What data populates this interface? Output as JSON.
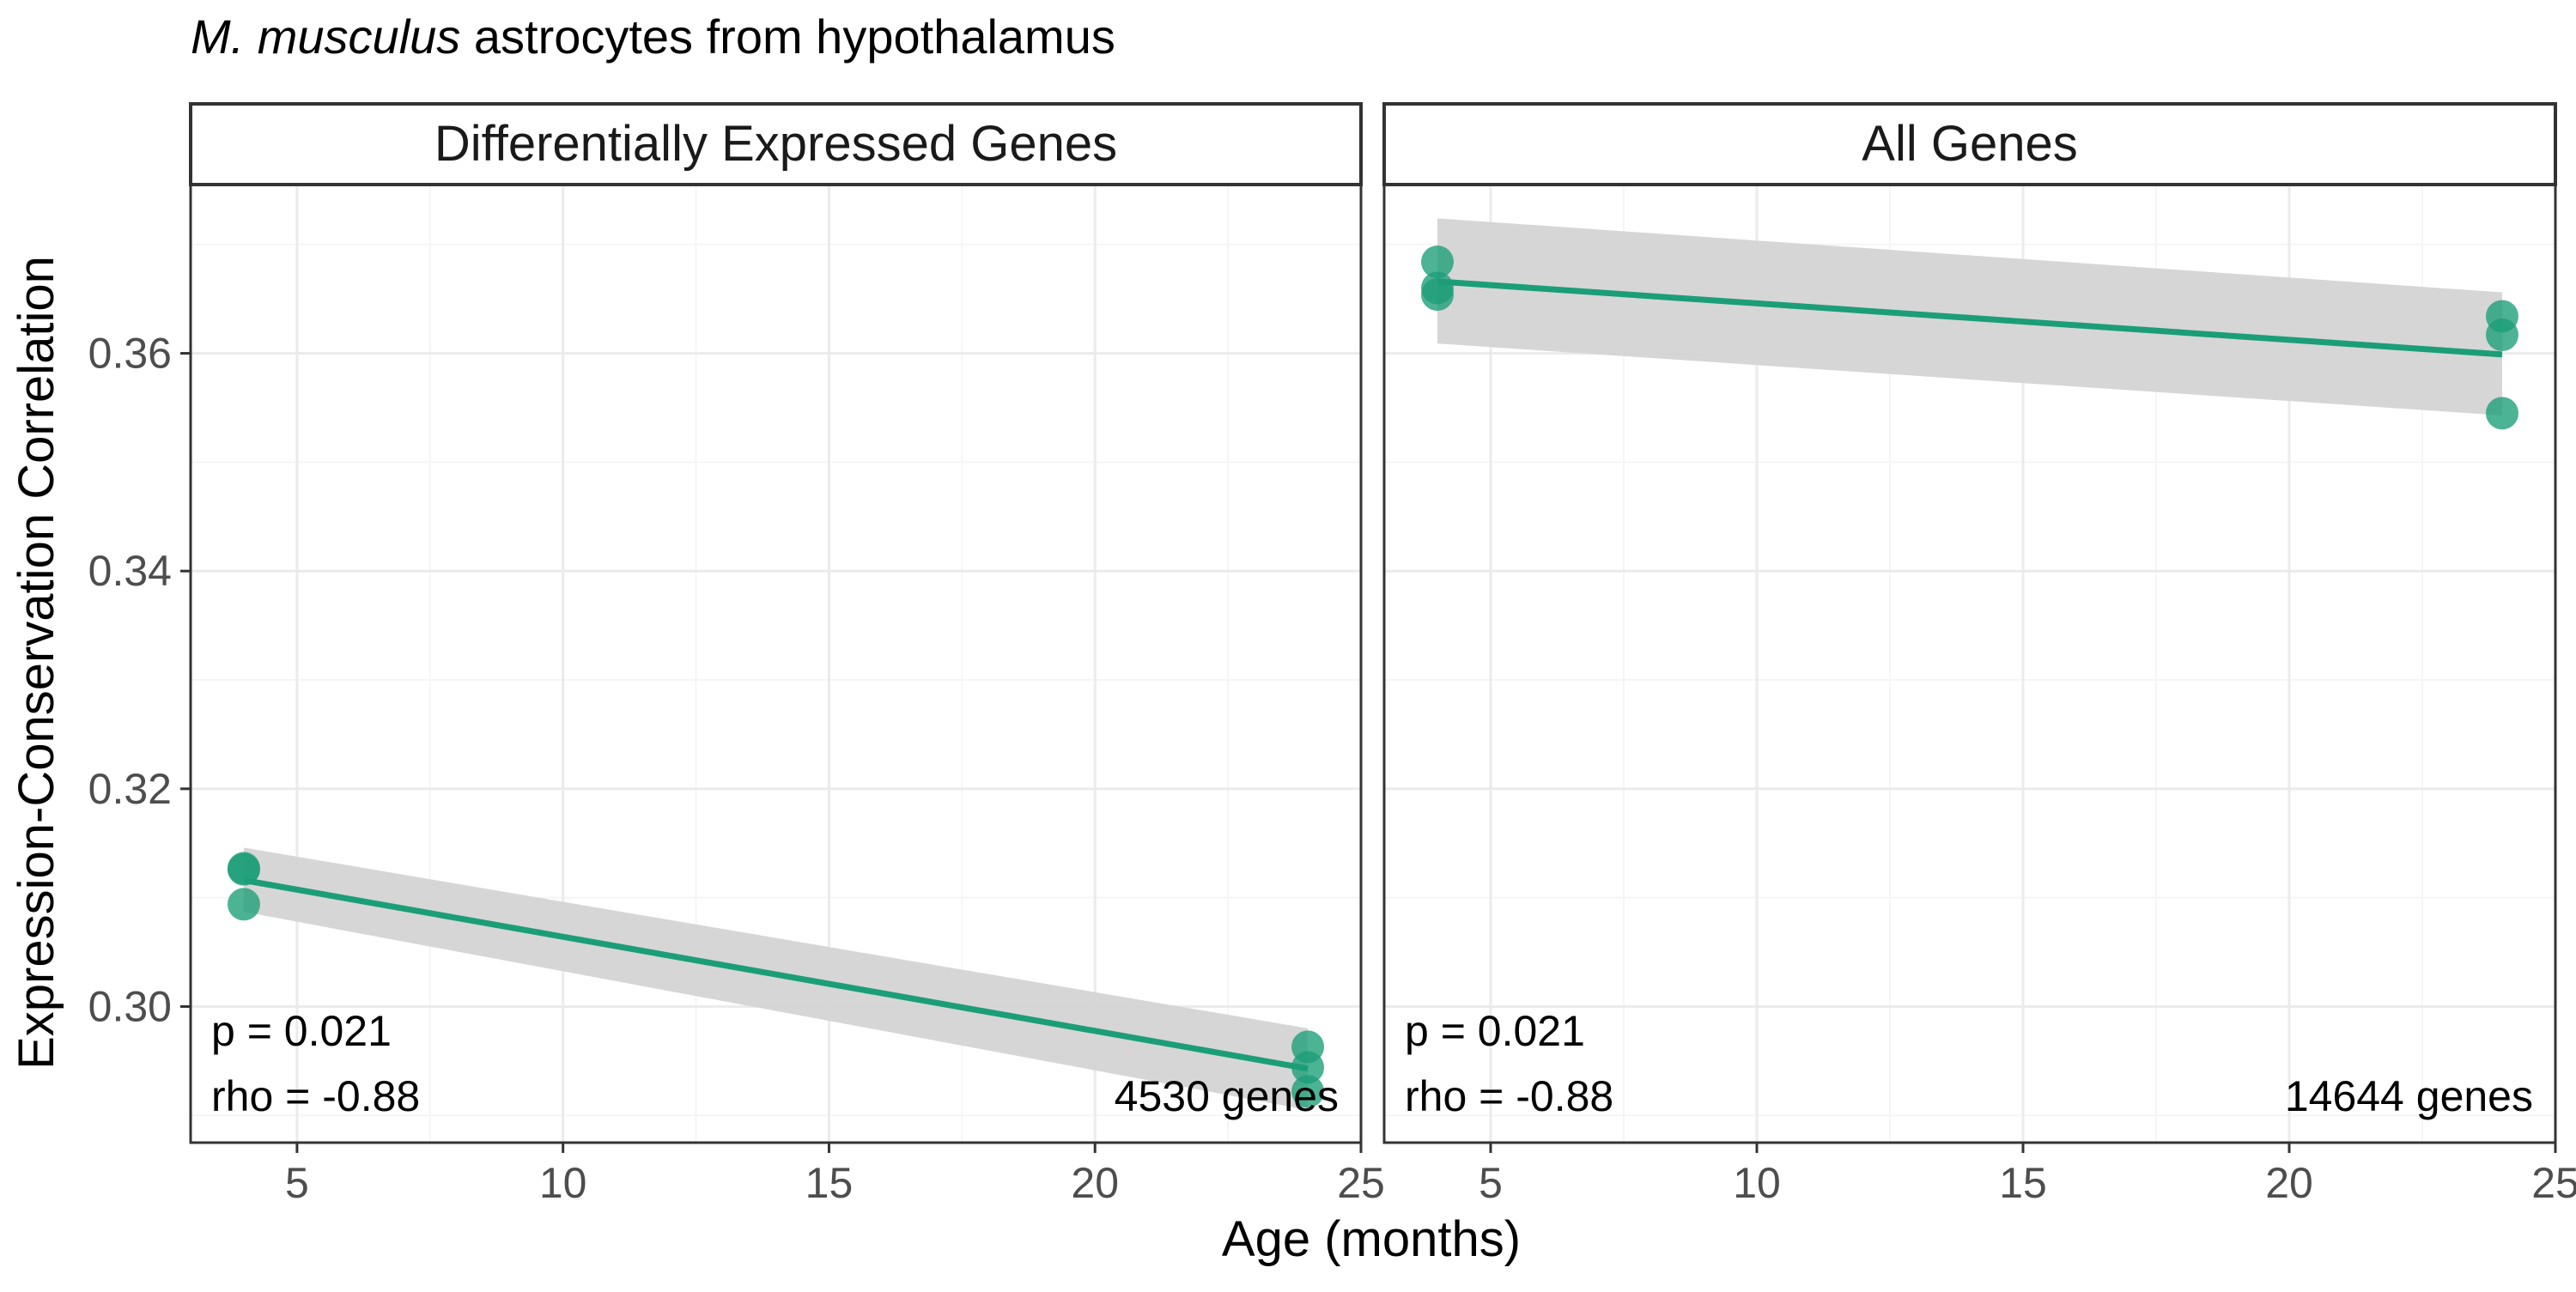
{
  "title": {
    "species": "M. musculus",
    "rest": "astrocytes from hypothalamus"
  },
  "colors": {
    "series": "#1b9e77",
    "ribbon": "#d4d4d4",
    "grid_major": "#ebebeb",
    "grid_minor": "#f5f5f5",
    "frame": "#333333",
    "tick_text": "#4d4d4d"
  },
  "chart_data": {
    "type": "scatter",
    "xlabel": "Age (months)",
    "ylabel": "Expression-Conservation Correlation",
    "xlim": [
      3,
      25
    ],
    "ylim": [
      0.2875,
      0.3755
    ],
    "x_ticks": [
      5,
      10,
      15,
      20,
      25
    ],
    "y_ticks": [
      0.3,
      0.32,
      0.34,
      0.36
    ],
    "grid": true,
    "smoothing": "linear fit with confidence band",
    "panels": [
      {
        "strip": "Differentially Expressed Genes",
        "points": [
          {
            "x": 4,
            "y": 0.3127
          },
          {
            "x": 4,
            "y": 0.3126
          },
          {
            "x": 4,
            "y": 0.3094
          },
          {
            "x": 24,
            "y": 0.2963
          },
          {
            "x": 24,
            "y": 0.2944
          },
          {
            "x": 24,
            "y": 0.2922
          }
        ],
        "fit": {
          "x": [
            4,
            24
          ],
          "y": [
            0.3116,
            0.2943
          ]
        },
        "band": {
          "x": [
            4,
            24
          ],
          "upper": [
            0.3146,
            0.298
          ],
          "lower": [
            0.3087,
            0.2905
          ]
        },
        "annotations": {
          "p": "p = 0.021",
          "rho": "rho = -0.88",
          "genes": "4530 genes"
        }
      },
      {
        "strip": "All Genes",
        "points": [
          {
            "x": 4,
            "y": 0.3684
          },
          {
            "x": 4,
            "y": 0.366
          },
          {
            "x": 4,
            "y": 0.3654
          },
          {
            "x": 24,
            "y": 0.3634
          },
          {
            "x": 24,
            "y": 0.3617
          },
          {
            "x": 24,
            "y": 0.3545
          }
        ],
        "fit": {
          "x": [
            4,
            24
          ],
          "y": [
            0.3666,
            0.3599
          ]
        },
        "band": {
          "x": [
            4,
            24
          ],
          "upper": [
            0.3724,
            0.3656
          ],
          "lower": [
            0.3609,
            0.3543
          ]
        },
        "annotations": {
          "p": "p = 0.021",
          "rho": "rho = -0.88",
          "genes": "14644 genes"
        }
      }
    ]
  }
}
